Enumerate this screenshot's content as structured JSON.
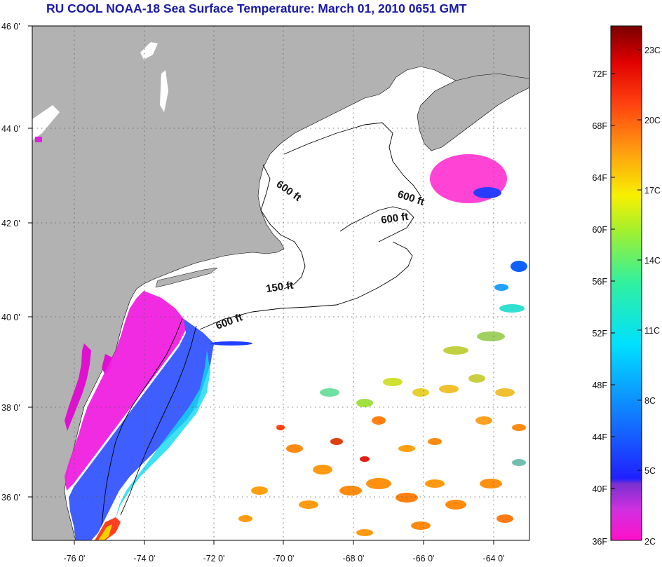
{
  "title": "RU COOL  NOAA-18  Sea Surface Temperature:  March 01, 2010 0651 GMT",
  "lat_labels": [
    "46 0'",
    "44 0'",
    "42 0'",
    "40 0'",
    "38 0'",
    "36 0'"
  ],
  "lon_labels": [
    "-76 0'",
    "-74 0'",
    "-72 0'",
    "-70 0'",
    "-68 0'",
    "-66 0'",
    "-64 0'"
  ],
  "depth_labels": [
    "600 ft",
    "600 ft",
    "600 ft",
    "150 ft",
    "600 ft"
  ],
  "colorbar": {
    "f_labels": [
      "72F",
      "68F",
      "64F",
      "60F",
      "56F",
      "52F",
      "48F",
      "44F",
      "40F",
      "36F"
    ],
    "c_labels": [
      "23C",
      "20C",
      "17C",
      "14C",
      "11C",
      "8C",
      "5C",
      "2C"
    ]
  },
  "colors": {
    "land": "#b2b2b2",
    "title": "#1a1aa8"
  }
}
